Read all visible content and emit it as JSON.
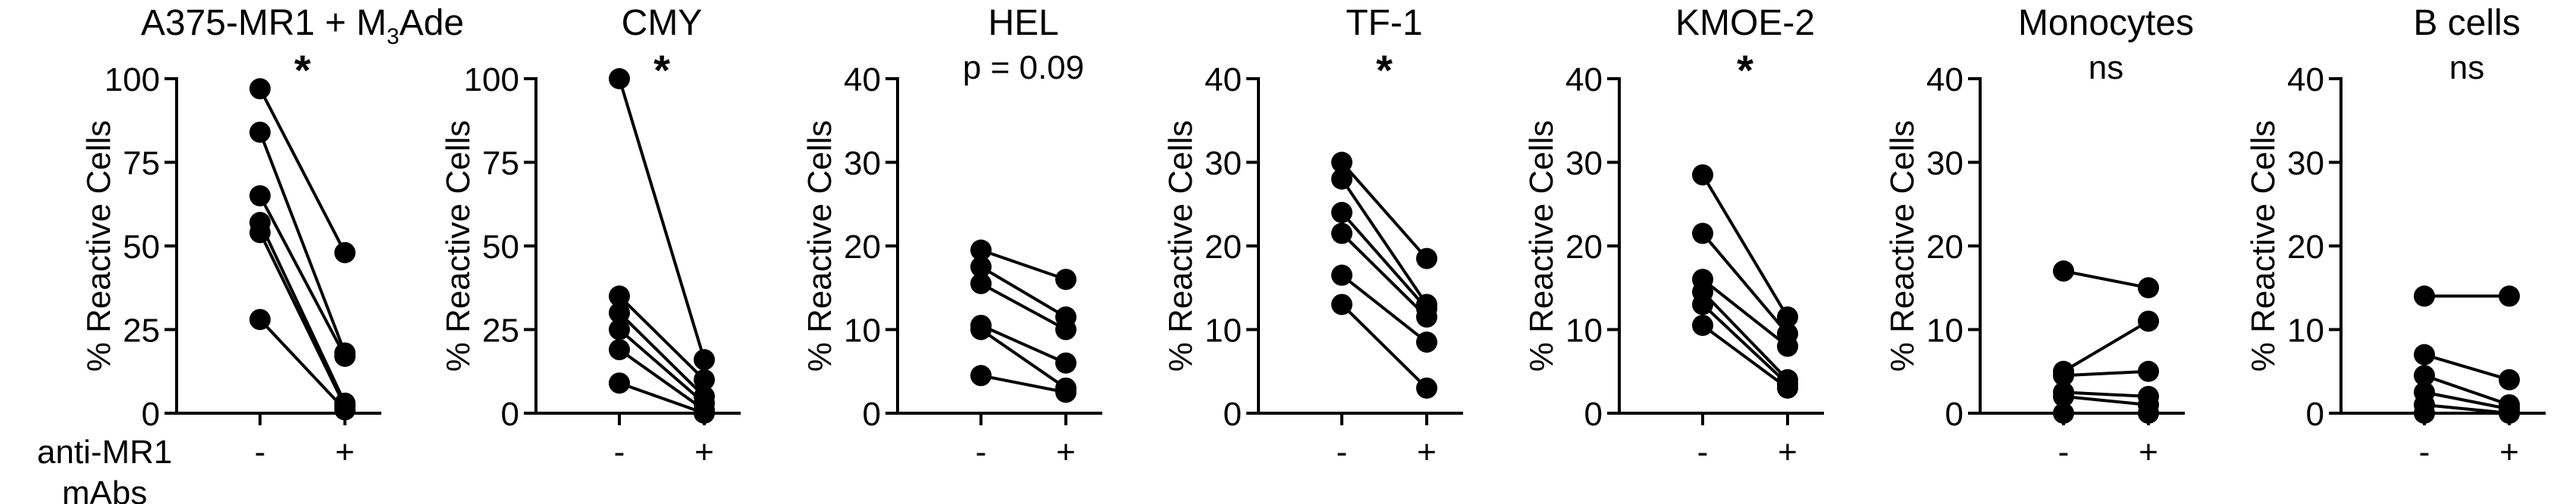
{
  "figure": {
    "row_label_line1": "anti-MR1",
    "row_label_line2": "mAbs"
  },
  "chart_data": [
    {
      "type": "line",
      "panel": "A375-MR1 + M3Ade",
      "title": "A375-MR1 + M",
      "title_subscript": "3",
      "title_suffix": "Ade",
      "significance": "*",
      "ylabel": "% Reactive Cells",
      "ylim": [
        0,
        100
      ],
      "yticks": [
        0,
        25,
        50,
        75,
        100
      ],
      "categories": [
        "-",
        "+"
      ],
      "pairs": [
        [
          97,
          48
        ],
        [
          84,
          18
        ],
        [
          65,
          17
        ],
        [
          57,
          3
        ],
        [
          54,
          2
        ],
        [
          28,
          1
        ]
      ]
    },
    {
      "type": "line",
      "panel": "CMY",
      "title": "CMY",
      "significance": "*",
      "ylabel": "% Reactive Cells",
      "ylim": [
        0,
        100
      ],
      "yticks": [
        0,
        25,
        50,
        75,
        100
      ],
      "categories": [
        "-",
        "+"
      ],
      "pairs": [
        [
          100,
          16
        ],
        [
          35,
          10
        ],
        [
          30,
          5
        ],
        [
          25,
          3
        ],
        [
          19,
          1
        ],
        [
          9,
          0
        ]
      ]
    },
    {
      "type": "line",
      "panel": "HEL",
      "title": "HEL",
      "significance": "p = 0.09",
      "ylabel": "% Reactive Cells",
      "ylim": [
        0,
        40
      ],
      "yticks": [
        0,
        10,
        20,
        30,
        40
      ],
      "categories": [
        "-",
        "+"
      ],
      "pairs": [
        [
          19.5,
          16
        ],
        [
          17.5,
          11.5
        ],
        [
          15.5,
          10
        ],
        [
          10.5,
          6
        ],
        [
          10,
          3
        ],
        [
          4.5,
          2.5
        ]
      ]
    },
    {
      "type": "line",
      "panel": "TF-1",
      "title": "TF-1",
      "significance": "*",
      "ylabel": "% Reactive Cells",
      "ylim": [
        0,
        40
      ],
      "yticks": [
        0,
        10,
        20,
        30,
        40
      ],
      "categories": [
        "-",
        "+"
      ],
      "pairs": [
        [
          30,
          18.5
        ],
        [
          28,
          13
        ],
        [
          24,
          12.5
        ],
        [
          21.5,
          11.5
        ],
        [
          16.5,
          8.5
        ],
        [
          13,
          3
        ]
      ]
    },
    {
      "type": "line",
      "panel": "KMOE-2",
      "title": "KMOE-2",
      "significance": "*",
      "ylabel": "% Reactive Cells",
      "ylim": [
        0,
        40
      ],
      "yticks": [
        0,
        10,
        20,
        30,
        40
      ],
      "categories": [
        "-",
        "+"
      ],
      "pairs": [
        [
          28.5,
          11.5
        ],
        [
          21.5,
          9.5
        ],
        [
          16,
          8
        ],
        [
          14.5,
          4
        ],
        [
          13,
          3.5
        ],
        [
          10.5,
          3
        ]
      ]
    },
    {
      "type": "line",
      "panel": "Monocytes",
      "title": "Monocytes",
      "significance": "ns",
      "ylabel": "% Reactive Cells",
      "ylim": [
        0,
        40
      ],
      "yticks": [
        0,
        10,
        20,
        30,
        40
      ],
      "categories": [
        "-",
        "+"
      ],
      "pairs": [
        [
          17,
          15
        ],
        [
          5,
          11
        ],
        [
          4.5,
          5
        ],
        [
          2.5,
          2
        ],
        [
          2,
          1
        ],
        [
          0,
          0
        ]
      ]
    },
    {
      "type": "line",
      "panel": "B cells",
      "title": "B cells",
      "significance": "ns",
      "ylabel": "% Reactive Cells",
      "ylim": [
        0,
        40
      ],
      "yticks": [
        0,
        10,
        20,
        30,
        40
      ],
      "categories": [
        "-",
        "+"
      ],
      "pairs": [
        [
          14,
          14
        ],
        [
          7,
          4
        ],
        [
          4.5,
          1
        ],
        [
          2.5,
          0.5
        ],
        [
          1,
          0
        ],
        [
          0,
          0
        ]
      ]
    }
  ],
  "colors": {
    "ink": "#000000",
    "background": "#ffffff"
  }
}
